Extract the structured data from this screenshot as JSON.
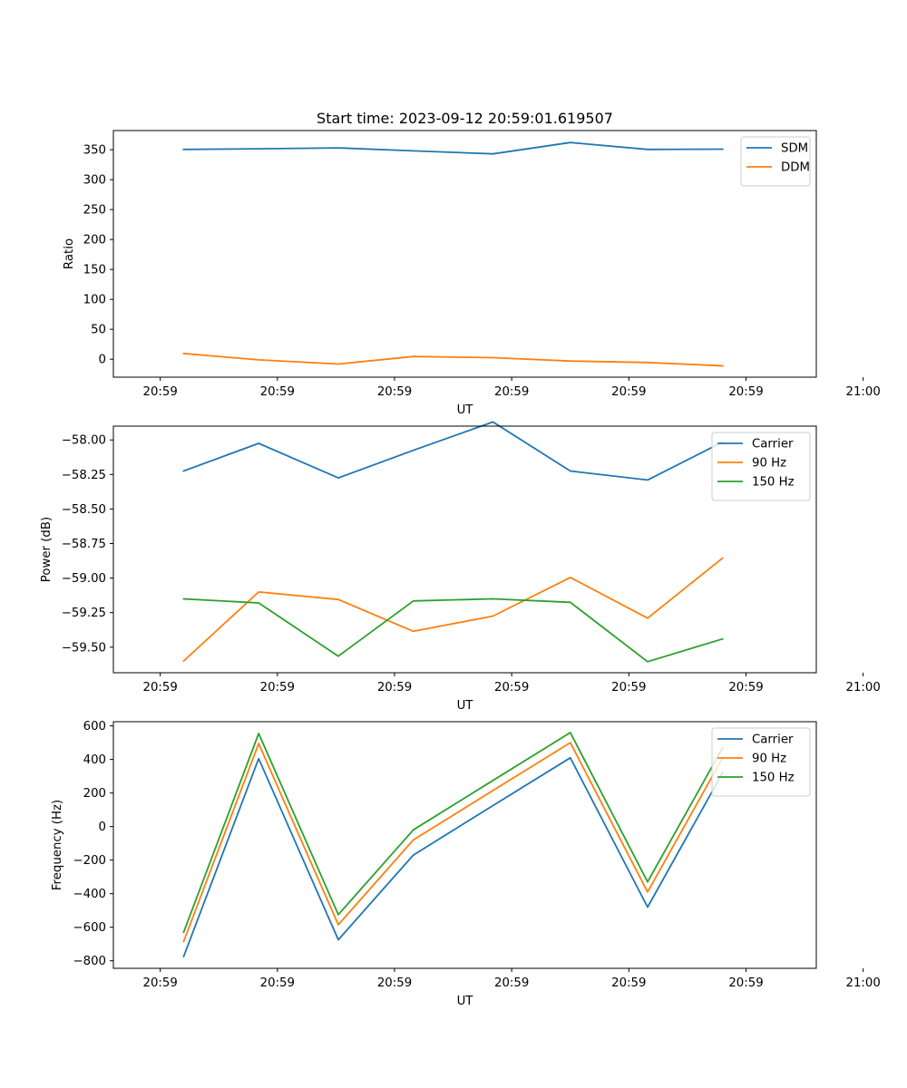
{
  "figure": {
    "title": "Start time: 2023-09-12 20:59:01.619507",
    "background": "#ffffff"
  },
  "colors": {
    "blue": "#1f77b4",
    "orange": "#ff7f0e",
    "green": "#2ca02c"
  },
  "chart_data": [
    {
      "type": "line",
      "id": "ratio",
      "title": "Start time: 2023-09-12 20:59:01.619507",
      "xlabel": "UT",
      "ylabel": "Ratio",
      "x": [
        1.5,
        3.1,
        4.8,
        6.4,
        8.1,
        9.75,
        11.4,
        13.0
      ],
      "xlim": [
        0,
        15
      ],
      "xticks": [
        1.0,
        3.5,
        6.0,
        8.5,
        11.0,
        13.5,
        16.0
      ],
      "xticklabels": [
        "20:59",
        "20:59",
        "20:59",
        "20:59",
        "20:59",
        "20:59",
        "21:00"
      ],
      "ylim": [
        -30,
        382
      ],
      "yticks": [
        0,
        50,
        100,
        150,
        200,
        250,
        300,
        350
      ],
      "yticklabels": [
        "0",
        "50",
        "100",
        "150",
        "200",
        "250",
        "300",
        "350"
      ],
      "legend": "top-right",
      "series": [
        {
          "name": "SDM",
          "color": "#1f77b4",
          "values": [
            350.5,
            351.5,
            353,
            348,
            343,
            362,
            350.5,
            351
          ]
        },
        {
          "name": "DDM",
          "color": "#ff7f0e",
          "values": [
            9.5,
            -1,
            -8,
            4.5,
            2.5,
            -3,
            -5.5,
            -11
          ]
        }
      ]
    },
    {
      "type": "line",
      "id": "power",
      "title": "",
      "xlabel": "UT",
      "ylabel": "Power (dB)",
      "x": [
        1.5,
        3.1,
        4.8,
        6.4,
        8.1,
        9.75,
        11.4,
        13.0
      ],
      "xlim": [
        0,
        15
      ],
      "xticks": [
        1.0,
        3.5,
        6.0,
        8.5,
        11.0,
        13.5,
        16.0
      ],
      "xticklabels": [
        "20:59",
        "20:59",
        "20:59",
        "20:59",
        "20:59",
        "20:59",
        "21:00"
      ],
      "ylim": [
        -59.685,
        -57.9
      ],
      "yticks": [
        -59.5,
        -59.25,
        -59.0,
        -58.75,
        -58.5,
        -58.25,
        -58.0
      ],
      "yticklabels": [
        "−59.50",
        "−59.25",
        "−59.00",
        "−58.75",
        "−58.50",
        "−58.25",
        "−58.00"
      ],
      "legend": "top-right",
      "series": [
        {
          "name": "Carrier",
          "color": "#1f77b4",
          "values": [
            -58.225,
            -58.025,
            -58.275,
            -58.075,
            -57.87,
            -58.225,
            -58.29,
            -58.015
          ]
        },
        {
          "name": "90 Hz",
          "color": "#ff7f0e",
          "values": [
            -59.6,
            -59.1,
            -59.155,
            -59.385,
            -59.275,
            -58.995,
            -59.29,
            -58.855
          ]
        },
        {
          "name": "150 Hz",
          "color": "#2ca02c",
          "values": [
            -59.15,
            -59.18,
            -59.565,
            -59.165,
            -59.15,
            -59.175,
            -59.605,
            -59.44
          ]
        }
      ]
    },
    {
      "type": "line",
      "id": "frequency",
      "title": "",
      "xlabel": "UT",
      "ylabel": "Frequency (Hz)",
      "x": [
        1.5,
        3.1,
        4.8,
        6.4,
        8.1,
        9.75,
        11.4,
        13.0
      ],
      "xlim": [
        0,
        15
      ],
      "xticks": [
        1.0,
        3.5,
        6.0,
        8.5,
        11.0,
        13.5,
        16.0
      ],
      "xticklabels": [
        "20:59",
        "20:59",
        "20:59",
        "20:59",
        "20:59",
        "20:59",
        "21:00"
      ],
      "ylim": [
        -845,
        625
      ],
      "yticks": [
        -800,
        -600,
        -400,
        -200,
        0,
        200,
        400,
        600
      ],
      "yticklabels": [
        "−800",
        "−600",
        "−400",
        "−200",
        "0",
        "200",
        "400",
        "600"
      ],
      "legend": "top-right",
      "series": [
        {
          "name": "Carrier",
          "color": "#1f77b4",
          "values": [
            -775,
            405,
            -675,
            -170,
            125,
            410,
            -480,
            320
          ]
        },
        {
          "name": "90 Hz",
          "color": "#ff7f0e",
          "values": [
            -685,
            495,
            -585,
            -80,
            215,
            500,
            -390,
            410
          ]
        },
        {
          "name": "150 Hz",
          "color": "#2ca02c",
          "values": [
            -630,
            555,
            -525,
            -20,
            275,
            560,
            -330,
            470
          ]
        }
      ]
    }
  ]
}
